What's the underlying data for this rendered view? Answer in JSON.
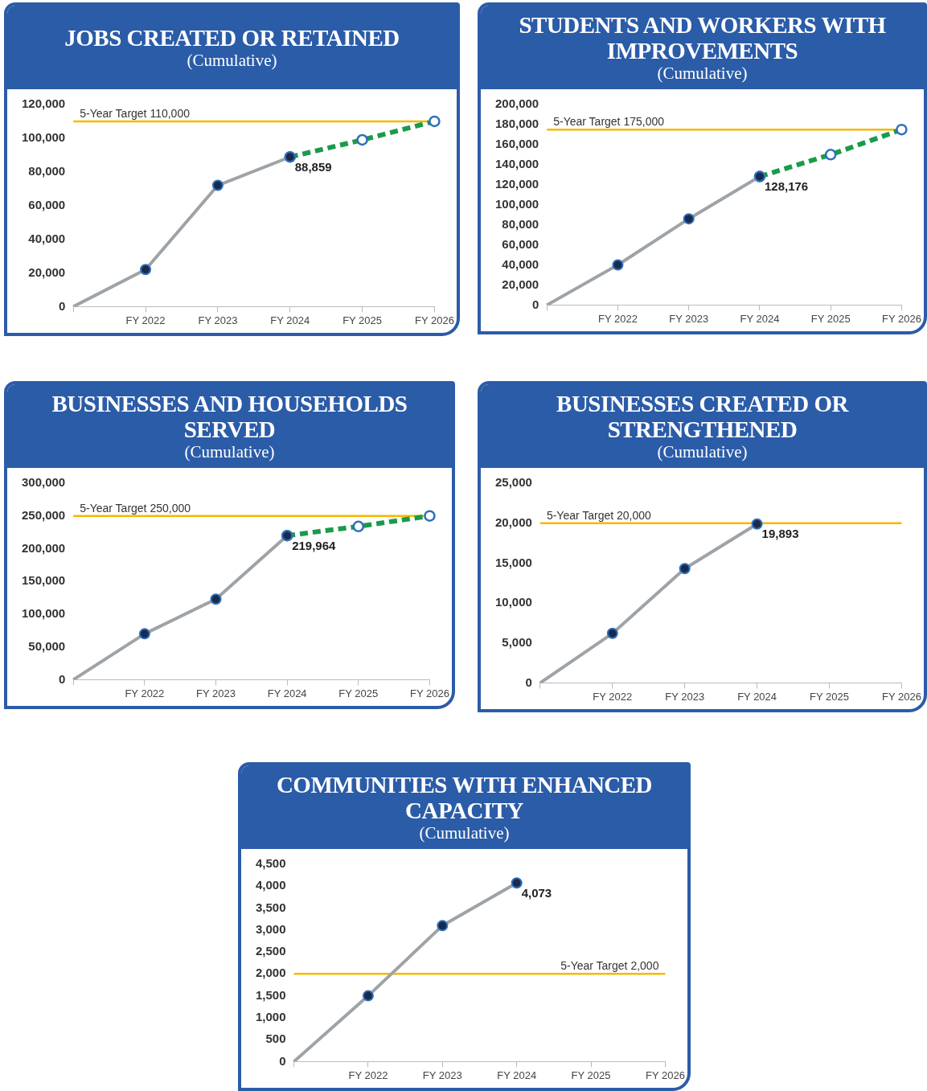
{
  "chart_data": [
    {
      "type": "line",
      "title": "JOBS CREATED OR RETAINED",
      "subtitle": "(Cumulative)",
      "categories": [
        null,
        "FY 2022",
        "FY 2023",
        "FY 2024",
        "FY 2025",
        "FY 2026"
      ],
      "ylim": [
        0,
        120000
      ],
      "yticks": [
        {
          "value": 0,
          "label": "0"
        },
        {
          "value": 20000,
          "label": "20,000"
        },
        {
          "value": 40000,
          "label": "40,000"
        },
        {
          "value": 60000,
          "label": "60,000"
        },
        {
          "value": 80000,
          "label": "80,000"
        },
        {
          "value": 100000,
          "label": "100,000"
        },
        {
          "value": 120000,
          "label": "120,000"
        }
      ],
      "grid": false,
      "legend": false,
      "ref_lines": [
        {
          "axis": "y",
          "value": 110000,
          "label": "5-Year Target 110,000",
          "color": "#f5b800"
        }
      ],
      "series": [
        {
          "type": "line",
          "color": "#9ea3a8",
          "marker": "none",
          "line_style": "solid",
          "values": [
            0,
            22000,
            72000,
            88859,
            null,
            null
          ]
        },
        {
          "type": "line",
          "color": "#1a9b4b",
          "marker": "circle",
          "line_style": "dashed",
          "values": [
            null,
            null,
            null,
            88859,
            99000,
            110000
          ]
        },
        {
          "type": "scatter",
          "color": "#1b2a4a",
          "marker": "circle",
          "x": [
            "FY 2022",
            "FY 2023",
            "FY 2024"
          ],
          "values": [
            22000,
            72000,
            88859
          ],
          "value_labels": [
            null,
            null,
            "88,859"
          ]
        }
      ]
    },
    {
      "type": "line",
      "title": "STUDENTS AND WORKERS WITH IMPROVEMENTS",
      "subtitle": "(Cumulative)",
      "categories": [
        null,
        "FY 2022",
        "FY 2023",
        "FY 2024",
        "FY 2025",
        "FY 2026"
      ],
      "ylim": [
        0,
        200000
      ],
      "yticks": [
        {
          "value": 0,
          "label": "0"
        },
        {
          "value": 20000,
          "label": "20,000"
        },
        {
          "value": 40000,
          "label": "40,000"
        },
        {
          "value": 60000,
          "label": "60,000"
        },
        {
          "value": 80000,
          "label": "80,000"
        },
        {
          "value": 100000,
          "label": "100,000"
        },
        {
          "value": 120000,
          "label": "120,000"
        },
        {
          "value": 140000,
          "label": "140,000"
        },
        {
          "value": 160000,
          "label": "160,000"
        },
        {
          "value": 180000,
          "label": "180,000"
        },
        {
          "value": 200000,
          "label": "200,000"
        }
      ],
      "grid": false,
      "legend": false,
      "ref_lines": [
        {
          "axis": "y",
          "value": 175000,
          "label": "5-Year Target 175,000",
          "color": "#f5b800"
        }
      ],
      "series": [
        {
          "type": "line",
          "color": "#9ea3a8",
          "marker": "none",
          "line_style": "solid",
          "values": [
            0,
            40000,
            86000,
            128176,
            null,
            null
          ]
        },
        {
          "type": "line",
          "color": "#1a9b4b",
          "marker": "circle",
          "line_style": "dashed",
          "values": [
            null,
            null,
            null,
            128176,
            150000,
            175000
          ]
        },
        {
          "type": "scatter",
          "color": "#1b2a4a",
          "marker": "circle",
          "x": [
            "FY 2022",
            "FY 2023",
            "FY 2024"
          ],
          "values": [
            40000,
            86000,
            128176
          ],
          "value_labels": [
            null,
            null,
            "128,176"
          ]
        }
      ]
    },
    {
      "type": "line",
      "title": "BUSINESSES AND HOUSEHOLDS SERVED",
      "subtitle": "(Cumulative)",
      "categories": [
        null,
        "FY 2022",
        "FY 2023",
        "FY 2024",
        "FY 2025",
        "FY 2026"
      ],
      "ylim": [
        0,
        300000
      ],
      "yticks": [
        {
          "value": 0,
          "label": "0"
        },
        {
          "value": 50000,
          "label": "50,000"
        },
        {
          "value": 100000,
          "label": "100,000"
        },
        {
          "value": 150000,
          "label": "150,000"
        },
        {
          "value": 200000,
          "label": "200,000"
        },
        {
          "value": 250000,
          "label": "250,000"
        },
        {
          "value": 300000,
          "label": "300,000"
        }
      ],
      "grid": false,
      "legend": false,
      "ref_lines": [
        {
          "axis": "y",
          "value": 250000,
          "label": "5-Year Target 250,000",
          "color": "#f5b800"
        }
      ],
      "series": [
        {
          "type": "line",
          "color": "#9ea3a8",
          "marker": "none",
          "line_style": "solid",
          "values": [
            0,
            70000,
            123000,
            219964,
            null,
            null
          ]
        },
        {
          "type": "line",
          "color": "#1a9b4b",
          "marker": "circle",
          "line_style": "dashed",
          "values": [
            null,
            null,
            null,
            219964,
            234000,
            250000
          ]
        },
        {
          "type": "scatter",
          "color": "#1b2a4a",
          "marker": "circle",
          "x": [
            "FY 2022",
            "FY 2023",
            "FY 2024"
          ],
          "values": [
            70000,
            123000,
            219964
          ],
          "value_labels": [
            null,
            null,
            "219,964"
          ]
        }
      ]
    },
    {
      "type": "line",
      "title": "BUSINESSES CREATED OR STRENGTHENED",
      "subtitle": "(Cumulative)",
      "categories": [
        null,
        "FY 2022",
        "FY 2023",
        "FY 2024",
        "FY 2025",
        "FY 2026"
      ],
      "ylim": [
        0,
        25000
      ],
      "yticks": [
        {
          "value": 0,
          "label": "0"
        },
        {
          "value": 5000,
          "label": "5,000"
        },
        {
          "value": 10000,
          "label": "10,000"
        },
        {
          "value": 15000,
          "label": "15,000"
        },
        {
          "value": 20000,
          "label": "20,000"
        },
        {
          "value": 25000,
          "label": "25,000"
        }
      ],
      "grid": false,
      "legend": false,
      "ref_lines": [
        {
          "axis": "y",
          "value": 20000,
          "label": "5-Year Target 20,000",
          "color": "#f5b800"
        }
      ],
      "series": [
        {
          "type": "line",
          "color": "#9ea3a8",
          "marker": "none",
          "line_style": "solid",
          "values": [
            0,
            6200,
            14300,
            19893,
            null,
            null
          ]
        },
        {
          "type": "scatter",
          "color": "#1b2a4a",
          "marker": "circle",
          "x": [
            "FY 2022",
            "FY 2023",
            "FY 2024"
          ],
          "values": [
            6200,
            14300,
            19893
          ],
          "value_labels": [
            null,
            null,
            "19,893"
          ]
        }
      ]
    },
    {
      "type": "line",
      "title": "COMMUNITIES WITH ENHANCED CAPACITY",
      "subtitle": "(Cumulative)",
      "categories": [
        null,
        "FY 2022",
        "FY 2023",
        "FY 2024",
        "FY 2025",
        "FY 2026"
      ],
      "ylim": [
        0,
        4500
      ],
      "yticks": [
        {
          "value": 0,
          "label": "0"
        },
        {
          "value": 500,
          "label": "500"
        },
        {
          "value": 1000,
          "label": "1,000"
        },
        {
          "value": 1500,
          "label": "1,500"
        },
        {
          "value": 2000,
          "label": "2,000"
        },
        {
          "value": 2500,
          "label": "2,500"
        },
        {
          "value": 3000,
          "label": "3,000"
        },
        {
          "value": 3500,
          "label": "3,500"
        },
        {
          "value": 4000,
          "label": "4,000"
        },
        {
          "value": 4500,
          "label": "4,500"
        }
      ],
      "grid": false,
      "legend": false,
      "ref_lines": [
        {
          "axis": "y",
          "value": 2000,
          "label": "5-Year Target 2,000",
          "color": "#f5b800"
        }
      ],
      "series": [
        {
          "type": "line",
          "color": "#9ea3a8",
          "marker": "none",
          "line_style": "solid",
          "values": [
            0,
            1500,
            3100,
            4073,
            null,
            null
          ]
        },
        {
          "type": "scatter",
          "color": "#1b2a4a",
          "marker": "circle",
          "x": [
            "FY 2022",
            "FY 2023",
            "FY 2024"
          ],
          "values": [
            1500,
            3100,
            4073
          ],
          "value_labels": [
            null,
            null,
            "4,073"
          ]
        }
      ]
    }
  ]
}
